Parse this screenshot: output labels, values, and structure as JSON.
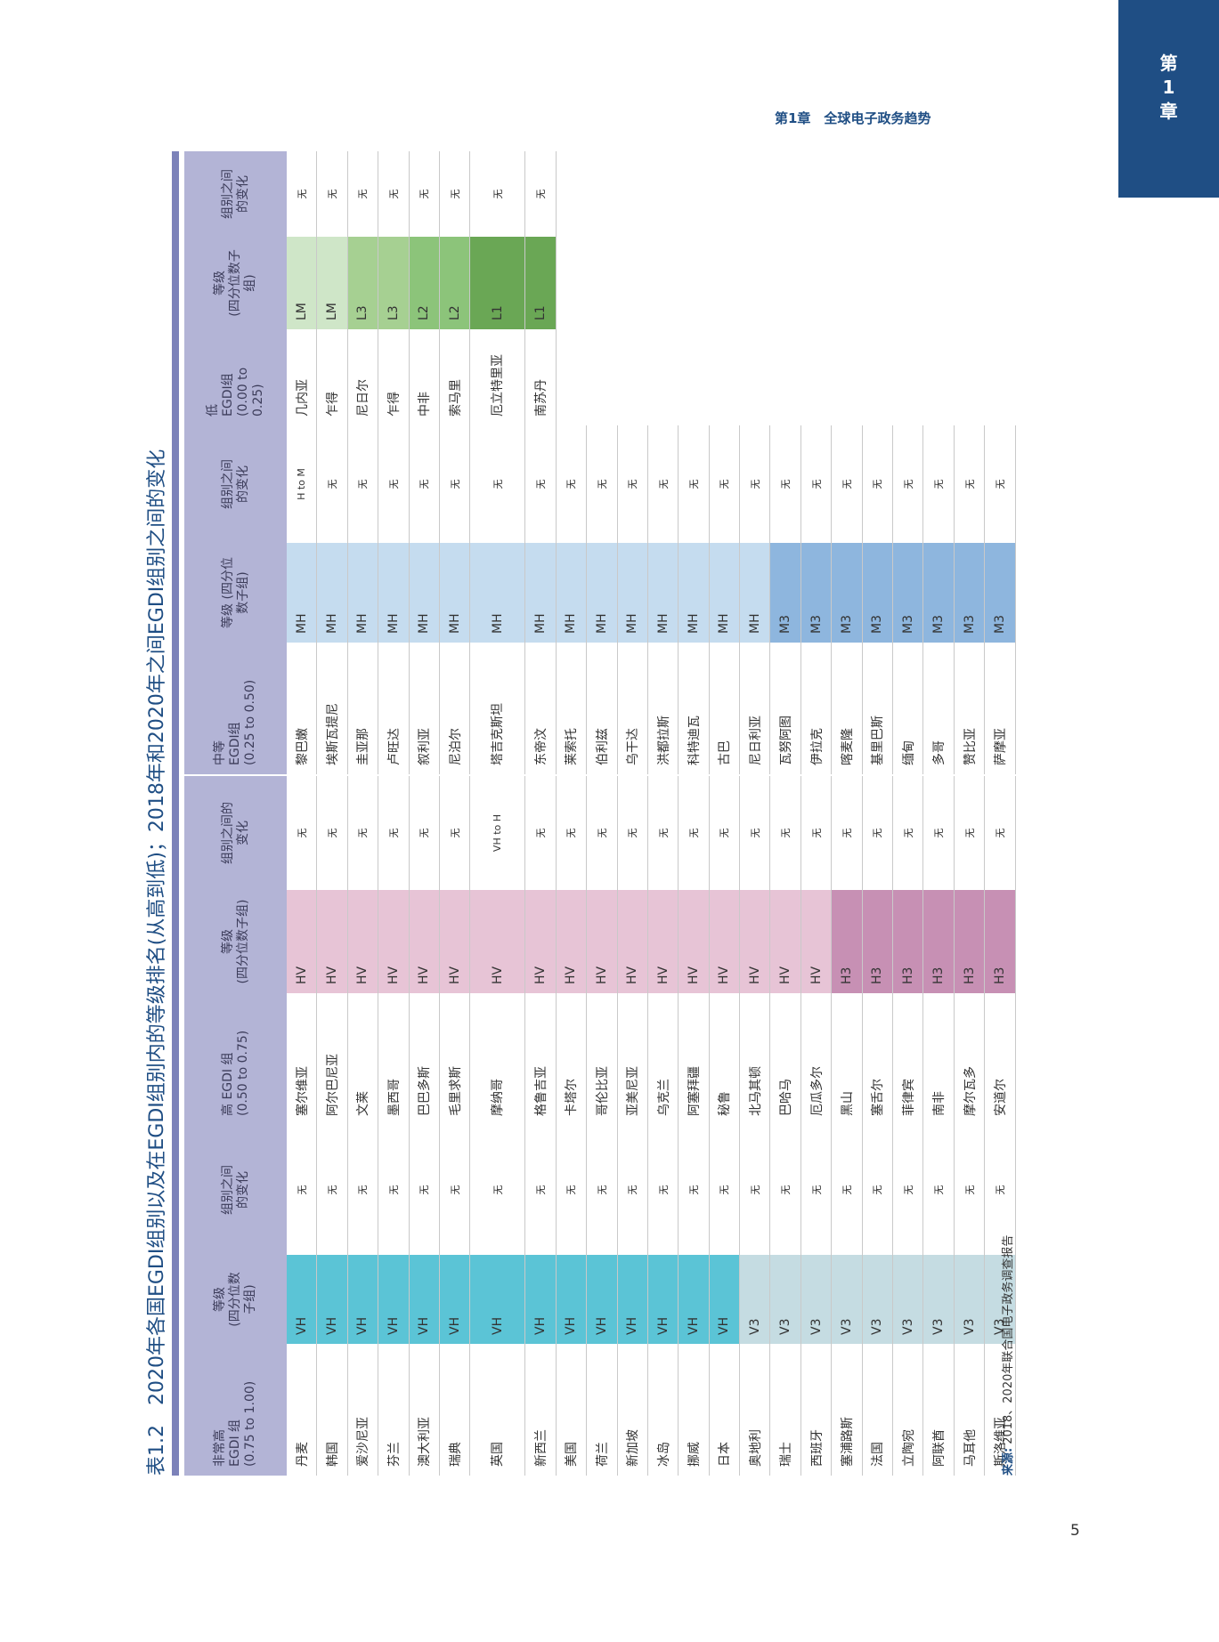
{
  "chapter_tab": {
    "line1": "第",
    "line2": "1",
    "line3": "章"
  },
  "header": {
    "title": "第1章　全球电子政务趋势"
  },
  "page_number": "5",
  "table": {
    "label": "表1.2",
    "title": "2020年各国EGDI组别以及在EGDI组别内的等级排名(从高到低)；2018年和2020年之间EGDI组别之间的变化",
    "source_label": "来源:",
    "source_text": "2018、2020年联合国电子政务调查报告",
    "very_high": {
      "headers": {
        "group": "非常高\nEGDI 组\n(0.75 to 1.00)",
        "rating": "等级\n(四分位数\n子组)",
        "change": "组别之间\n的变化"
      },
      "rows": [
        {
          "country": "丹麦",
          "rating": "VH",
          "change": "无"
        },
        {
          "country": "韩国",
          "rating": "VH",
          "change": "无"
        },
        {
          "country": "爱沙尼亚",
          "rating": "VH",
          "change": "无"
        },
        {
          "country": "芬兰",
          "rating": "VH",
          "change": "无"
        },
        {
          "country": "澳大利亚",
          "rating": "VH",
          "change": "无"
        },
        {
          "country": "瑞典",
          "rating": "VH",
          "change": "无"
        },
        {
          "country": "英国",
          "rating": "VH",
          "change": "无"
        },
        {
          "country": "新西兰",
          "rating": "VH",
          "change": "无"
        },
        {
          "country": "美国",
          "rating": "VH",
          "change": "无"
        },
        {
          "country": "荷兰",
          "rating": "VH",
          "change": "无"
        },
        {
          "country": "新加坡",
          "rating": "VH",
          "change": "无"
        },
        {
          "country": "冰岛",
          "rating": "VH",
          "change": "无"
        },
        {
          "country": "挪威",
          "rating": "VH",
          "change": "无"
        },
        {
          "country": "日本",
          "rating": "VH",
          "change": "无"
        },
        {
          "country": "奥地利",
          "rating": "V3",
          "change": "无"
        },
        {
          "country": "瑞士",
          "rating": "V3",
          "change": "无"
        },
        {
          "country": "西班牙",
          "rating": "V3",
          "change": "无"
        },
        {
          "country": "塞浦路斯",
          "rating": "V3",
          "change": "无"
        },
        {
          "country": "法国",
          "rating": "V3",
          "change": "无"
        },
        {
          "country": "立陶宛",
          "rating": "V3",
          "change": "无"
        },
        {
          "country": "阿联酋",
          "rating": "V3",
          "change": "无"
        },
        {
          "country": "马耳他",
          "rating": "V3",
          "change": "无"
        },
        {
          "country": "斯洛维亚",
          "rating": "V3",
          "change": "无"
        }
      ]
    },
    "high": {
      "headers": {
        "group": "高 EGDI 组\n(0.50 to 0.75)",
        "rating": "等级\n(四分位数子组)",
        "change": "组别之间的\n变化"
      },
      "rows": [
        {
          "country": "塞尔维亚",
          "rating": "HV",
          "change": "无"
        },
        {
          "country": "阿尔巴尼亚",
          "rating": "HV",
          "change": "无"
        },
        {
          "country": "文莱",
          "rating": "HV",
          "change": "无"
        },
        {
          "country": "墨西哥",
          "rating": "HV",
          "change": "无"
        },
        {
          "country": "巴巴多斯",
          "rating": "HV",
          "change": "无"
        },
        {
          "country": "毛里求斯",
          "rating": "HV",
          "change": "无"
        },
        {
          "country": "摩纳哥",
          "rating": "HV",
          "change": "VH to H"
        },
        {
          "country": "格鲁吉亚",
          "rating": "HV",
          "change": "无"
        },
        {
          "country": "卡塔尔",
          "rating": "HV",
          "change": "无"
        },
        {
          "country": "哥伦比亚",
          "rating": "HV",
          "change": "无"
        },
        {
          "country": "亚美尼亚",
          "rating": "HV",
          "change": "无"
        },
        {
          "country": "乌克兰",
          "rating": "HV",
          "change": "无"
        },
        {
          "country": "阿塞拜疆",
          "rating": "HV",
          "change": "无"
        },
        {
          "country": "秘鲁",
          "rating": "HV",
          "change": "无"
        },
        {
          "country": "北马其顿",
          "rating": "HV",
          "change": "无"
        },
        {
          "country": "巴哈马",
          "rating": "HV",
          "change": "无"
        },
        {
          "country": "厄瓜多尔",
          "rating": "HV",
          "change": "无"
        },
        {
          "country": "黑山",
          "rating": "H3",
          "change": "无"
        },
        {
          "country": "塞舌尔",
          "rating": "H3",
          "change": "无"
        },
        {
          "country": "菲律宾",
          "rating": "H3",
          "change": "无"
        },
        {
          "country": "南非",
          "rating": "H3",
          "change": "无"
        },
        {
          "country": "摩尔瓦多",
          "rating": "H3",
          "change": "无"
        },
        {
          "country": "安道尔",
          "rating": "H3",
          "change": "无"
        }
      ]
    },
    "middle": {
      "headers": {
        "group": "中等\nEGDI组\n(0.25 to 0.50)",
        "rating": "等级 (四分位\n数子组)",
        "change": "组别之间\n的变化"
      },
      "rows": [
        {
          "country": "黎巴嫩",
          "rating": "MH",
          "change": "H to M"
        },
        {
          "country": "埃斯瓦提尼",
          "rating": "MH",
          "change": "无"
        },
        {
          "country": "圭亚那",
          "rating": "MH",
          "change": "无"
        },
        {
          "country": "卢旺达",
          "rating": "MH",
          "change": "无"
        },
        {
          "country": "叙利亚",
          "rating": "MH",
          "change": "无"
        },
        {
          "country": "尼泊尔",
          "rating": "MH",
          "change": "无"
        },
        {
          "country": "塔吉克斯坦",
          "rating": "MH",
          "change": "无"
        },
        {
          "country": "东帝汶",
          "rating": "MH",
          "change": "无"
        },
        {
          "country": "莱索托",
          "rating": "MH",
          "change": "无"
        },
        {
          "country": "伯利兹",
          "rating": "MH",
          "change": "无"
        },
        {
          "country": "乌干达",
          "rating": "MH",
          "change": "无"
        },
        {
          "country": "洪都拉斯",
          "rating": "MH",
          "change": "无"
        },
        {
          "country": "科特迪瓦",
          "rating": "MH",
          "change": "无"
        },
        {
          "country": "古巴",
          "rating": "MH",
          "change": "无"
        },
        {
          "country": "尼日利亚",
          "rating": "MH",
          "change": "无"
        },
        {
          "country": "瓦努阿图",
          "rating": "M3",
          "change": "无"
        },
        {
          "country": "伊拉克",
          "rating": "M3",
          "change": "无"
        },
        {
          "country": "喀麦隆",
          "rating": "M3",
          "change": "无"
        },
        {
          "country": "基里巴斯",
          "rating": "M3",
          "change": "无"
        },
        {
          "country": "缅甸",
          "rating": "M3",
          "change": "无"
        },
        {
          "country": "多哥",
          "rating": "M3",
          "change": "无"
        },
        {
          "country": "赞比亚",
          "rating": "M3",
          "change": "无"
        },
        {
          "country": "萨摩亚",
          "rating": "M3",
          "change": "无"
        }
      ]
    },
    "low": {
      "headers": {
        "group": "低\nEGDI组\n(0.00 to\n0.25)",
        "rating": "等级\n(四分位数子\n组)",
        "change": "组别之间\n的变化"
      },
      "rows": [
        {
          "country": "几内亚",
          "rating": "LM",
          "change": "无"
        },
        {
          "country": "乍得",
          "rating": "LM",
          "change": "无"
        },
        {
          "country": "尼日尔",
          "rating": "L3",
          "change": "无"
        },
        {
          "country": "乍得",
          "rating": "L3",
          "change": "无"
        },
        {
          "country": "中非",
          "rating": "L2",
          "change": "无"
        },
        {
          "country": "索马里",
          "rating": "L2",
          "change": "无"
        },
        {
          "country": "厄立特里亚",
          "rating": "L1",
          "change": "无"
        },
        {
          "country": "南苏丹",
          "rating": "L1",
          "change": "无"
        }
      ]
    }
  }
}
